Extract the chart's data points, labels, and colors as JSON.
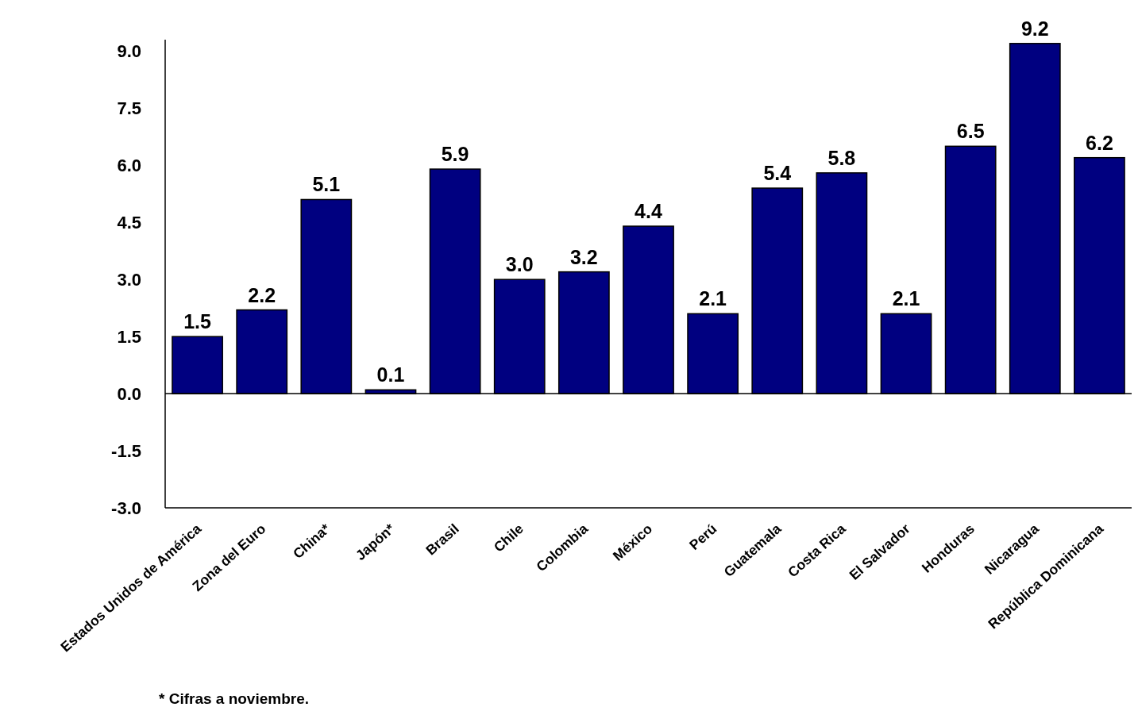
{
  "chart_data": {
    "type": "bar",
    "categories": [
      "Estados Unidos de América",
      "Zona del Euro",
      "China*",
      "Japón*",
      "Brasil",
      "Chile",
      "Colombia",
      "México",
      "Perú",
      "Guatemala",
      "Costa Rica",
      "El Salvador",
      "Honduras",
      "Nicaragua",
      "República Dominicana"
    ],
    "values": [
      1.5,
      2.2,
      5.1,
      0.1,
      5.9,
      3.0,
      3.2,
      4.4,
      2.1,
      5.4,
      5.8,
      2.1,
      6.5,
      9.2,
      6.2
    ],
    "value_labels": [
      "1.5",
      "2.2",
      "5.1",
      "0.1",
      "5.9",
      "3.0",
      "3.2",
      "4.4",
      "2.1",
      "5.4",
      "5.8",
      "2.1",
      "6.5",
      "9.2",
      "6.2"
    ],
    "color": "#000080",
    "ylim": [
      -3.0,
      9.3
    ],
    "yticks": [
      {
        "value": -3,
        "label": "-3.0"
      },
      {
        "value": -1.5,
        "label": "-1.5"
      },
      {
        "value": 0,
        "label": "0.0"
      },
      {
        "value": 1.5,
        "label": "1.5"
      },
      {
        "value": 3,
        "label": "3.0"
      },
      {
        "value": 4.5,
        "label": "4.5"
      },
      {
        "value": 6,
        "label": "6.0"
      },
      {
        "value": 7.5,
        "label": "7.5"
      },
      {
        "value": 9,
        "label": "9.0"
      }
    ],
    "annotations": [
      "* Cifras a noviembre."
    ]
  }
}
